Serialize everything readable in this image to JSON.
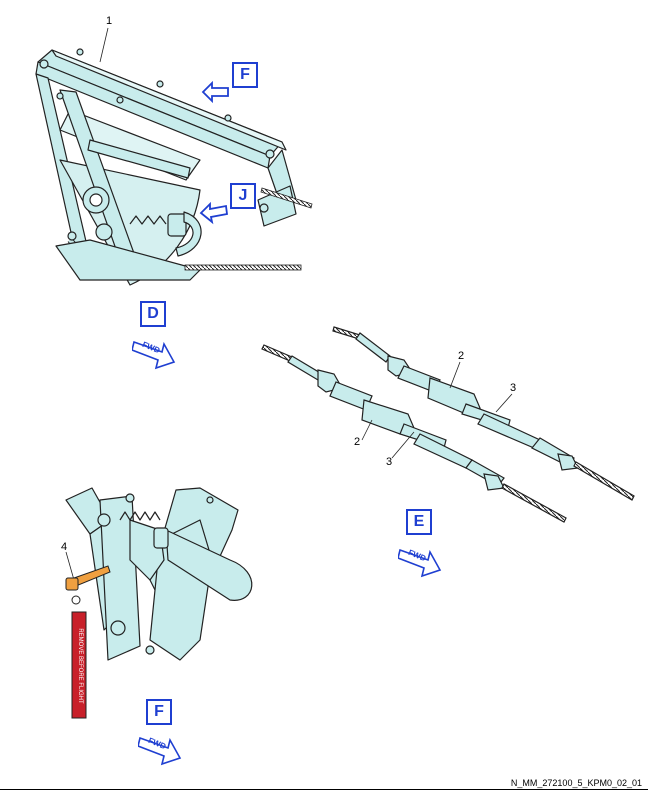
{
  "callouts": {
    "item1": "1",
    "item2a": "2",
    "item2b": "2",
    "item3a": "3",
    "item3b": "3",
    "item4": "4"
  },
  "views": {
    "F_top": "F",
    "J": "J",
    "D": "D",
    "E": "E",
    "F_bottom": "F"
  },
  "fwd": {
    "d": "FWD",
    "e": "FWD",
    "f": "FWD"
  },
  "flag_text": "REMOVE BEFORE FLIGHT",
  "reference": "N_MM_272100_5_KPM0_02_01",
  "colors": {
    "part_fill": "#c8ecec",
    "outline": "#222222",
    "view_blue": "#1f3fd1",
    "pin_orange": "#f0a040",
    "flag_red": "#c8202a"
  }
}
